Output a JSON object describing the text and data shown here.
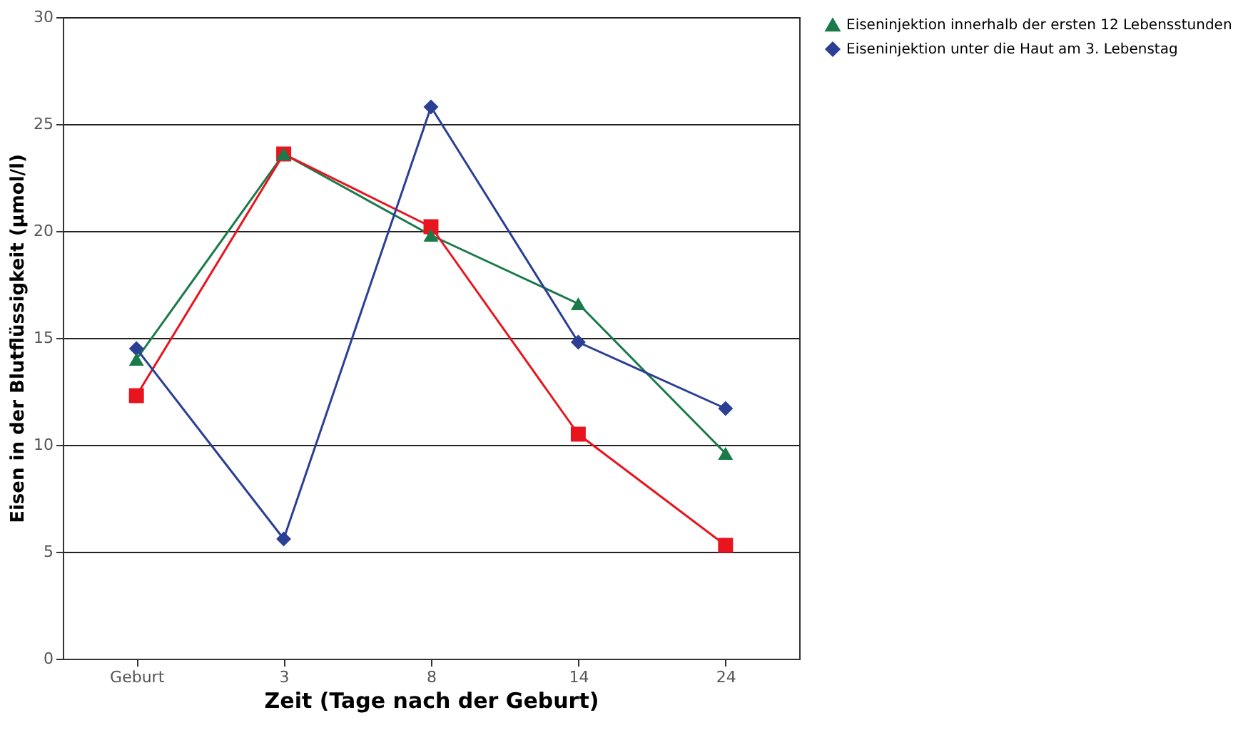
{
  "chart_data": {
    "type": "line",
    "xlabel": "Zeit (Tage nach der Geburt)",
    "ylabel": "Eisen in der Blutflüssigkeit (µmol/l)",
    "categories": [
      "Geburt",
      "3",
      "8",
      "14",
      "24"
    ],
    "series": [
      {
        "name": "Eiseninjektion innerhalb der ersten 12 Lebensstunden",
        "color": "#1a7a4a",
        "marker": "triangle",
        "values": [
          14.0,
          23.6,
          19.8,
          16.6,
          9.6
        ]
      },
      {
        "color": "#e8141e",
        "marker": "square",
        "values": [
          12.3,
          23.6,
          20.2,
          10.5,
          5.3
        ]
      },
      {
        "name": "Eiseninjektion unter die Haut am 3. Lebenstag",
        "color": "#2b3f94",
        "marker": "diamond",
        "values": [
          14.5,
          5.6,
          25.8,
          14.8,
          11.7
        ]
      }
    ],
    "ylim": [
      0,
      30
    ],
    "yticks": [
      0,
      5,
      10,
      15,
      20,
      25,
      30
    ],
    "grid": "y",
    "legend": "right"
  }
}
